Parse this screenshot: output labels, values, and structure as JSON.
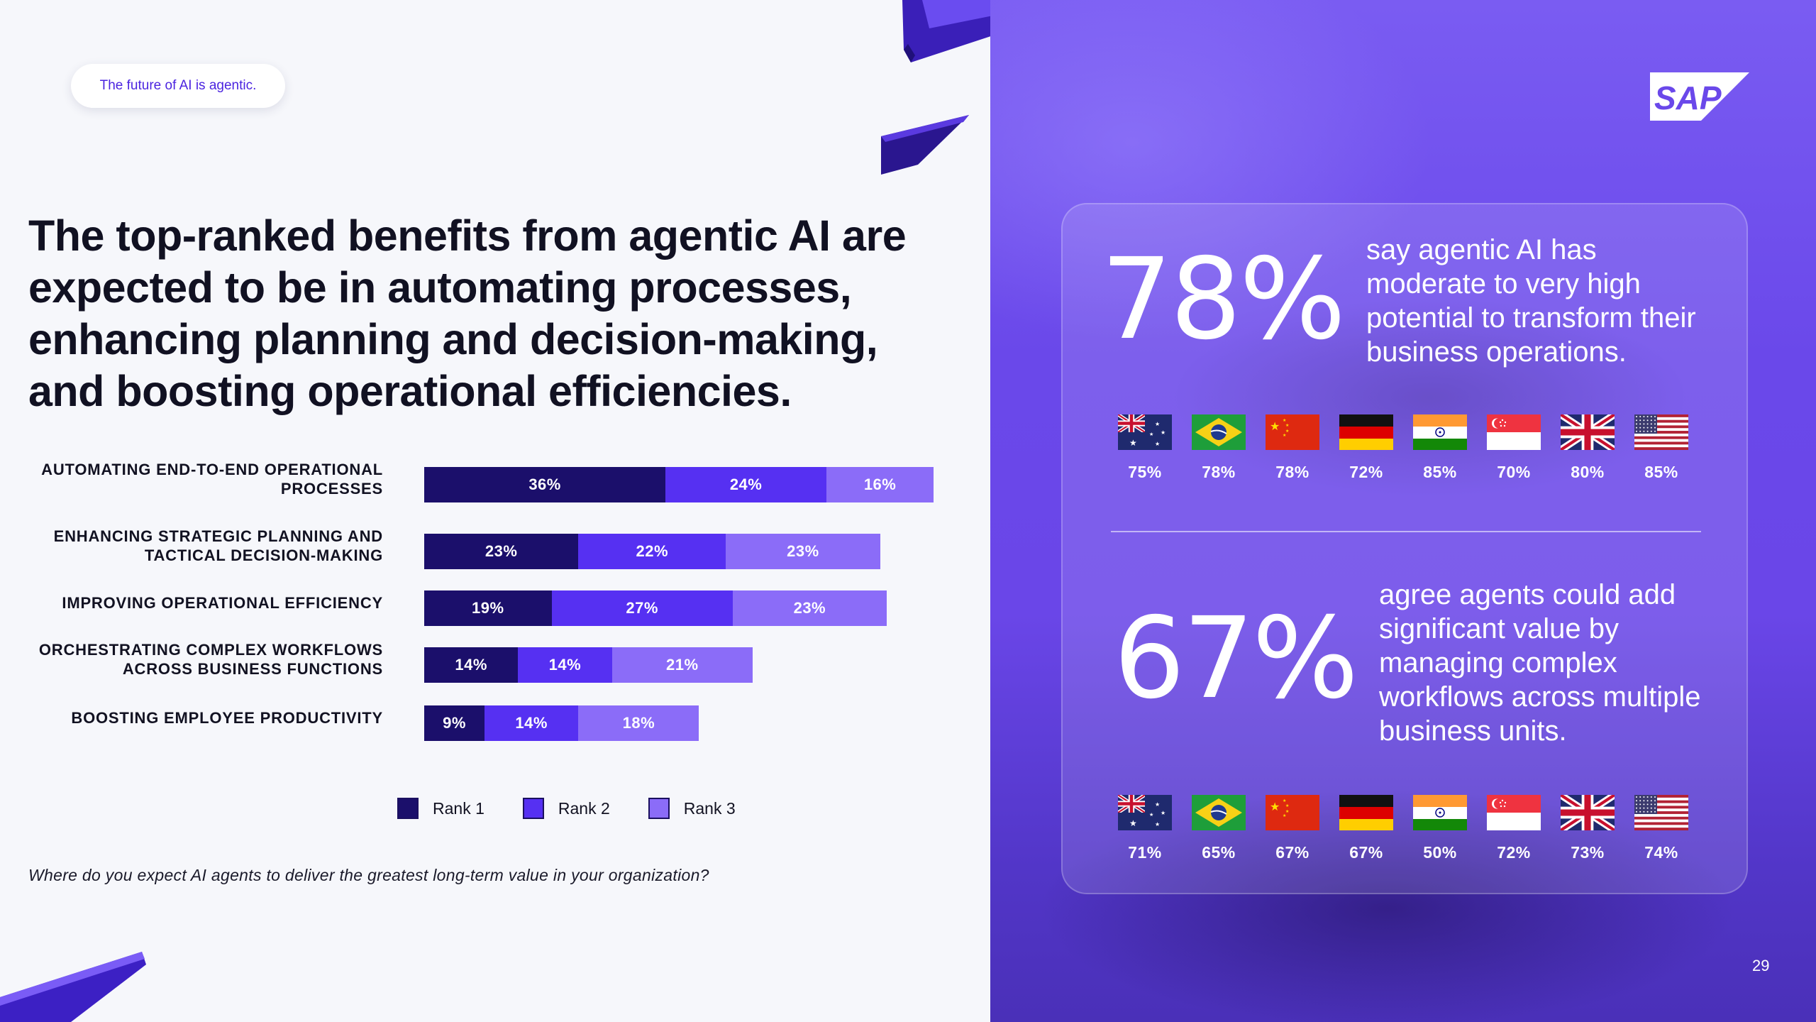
{
  "tagline": "The future of AI is agentic.",
  "headline": "The top-ranked benefits from agentic AI are expected to be in automating processes, enhancing planning and decision-making, and boosting operational efficiencies.",
  "question": "Where do you expect AI agents to deliver the greatest long-term value in your organization?",
  "colors": {
    "rank1": "#1b0f6b",
    "rank2": "#5630f2",
    "rank3": "#8b6cf8",
    "accent": "#4b24e0"
  },
  "chart_data": {
    "type": "bar",
    "orientation": "horizontal",
    "stacked": true,
    "title": "",
    "categories": [
      "AUTOMATING END-TO-END OPERATIONAL PROCESSES",
      "ENHANCING STRATEGIC PLANNING AND TACTICAL DECISION-MAKING",
      "IMPROVING OPERATIONAL EFFICIENCY",
      "ORCHESTRATING COMPLEX WORKFLOWS ACROSS BUSINESS FUNCTIONS",
      "BOOSTING EMPLOYEE PRODUCTIVITY"
    ],
    "series": [
      {
        "name": "Rank 1",
        "values": [
          36,
          23,
          19,
          14,
          9
        ]
      },
      {
        "name": "Rank 2",
        "values": [
          24,
          22,
          27,
          14,
          14
        ]
      },
      {
        "name": "Rank 3",
        "values": [
          16,
          23,
          23,
          21,
          18
        ]
      }
    ],
    "value_suffix": "%",
    "legend_position": "bottom",
    "grid": false
  },
  "stats": [
    {
      "value": "78%",
      "text": "say agentic AI has moderate to very high potential to transform their business operations.",
      "countries": [
        {
          "flag": "australia-flag",
          "pct": "75%"
        },
        {
          "flag": "brazil-flag",
          "pct": "78%"
        },
        {
          "flag": "china-flag",
          "pct": "78%"
        },
        {
          "flag": "germany-flag",
          "pct": "72%"
        },
        {
          "flag": "india-flag",
          "pct": "85%"
        },
        {
          "flag": "singapore-flag",
          "pct": "70%"
        },
        {
          "flag": "uk-flag",
          "pct": "80%"
        },
        {
          "flag": "usa-flag",
          "pct": "85%"
        }
      ]
    },
    {
      "value": "67%",
      "text": "agree agents could add significant value by managing complex workflows across multiple business units.",
      "countries": [
        {
          "flag": "australia-flag",
          "pct": "71%"
        },
        {
          "flag": "brazil-flag",
          "pct": "65%"
        },
        {
          "flag": "china-flag",
          "pct": "67%"
        },
        {
          "flag": "germany-flag",
          "pct": "67%"
        },
        {
          "flag": "india-flag",
          "pct": "50%"
        },
        {
          "flag": "singapore-flag",
          "pct": "72%"
        },
        {
          "flag": "uk-flag",
          "pct": "73%"
        },
        {
          "flag": "usa-flag",
          "pct": "74%"
        }
      ]
    }
  ],
  "logo": "SAP",
  "page_number": "29"
}
